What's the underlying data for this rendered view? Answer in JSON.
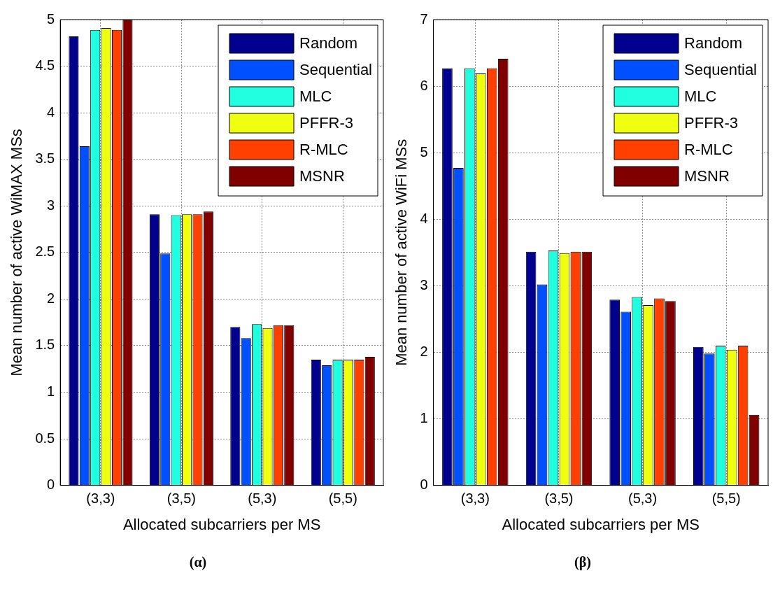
{
  "chart_data": [
    {
      "type": "bar",
      "xlabel": "Allocated subcarriers per MS",
      "ylabel": "Mean number of active WiMAX MSs",
      "annotations": [
        "(α)"
      ],
      "categories": [
        "(3,3)",
        "(3,5)",
        "(5,3)",
        "(5,5)"
      ],
      "series": [
        {
          "name": "Random",
          "color": "#00008f",
          "values": [
            4.82,
            2.91,
            1.7,
            1.35
          ]
        },
        {
          "name": "Sequential",
          "color": "#0050ff",
          "values": [
            3.64,
            2.49,
            1.58,
            1.29
          ]
        },
        {
          "name": "MLC",
          "color": "#20ffe0",
          "values": [
            4.89,
            2.9,
            1.73,
            1.35
          ]
        },
        {
          "name": "PFFR-3",
          "color": "#f0ff10",
          "values": [
            4.91,
            2.91,
            1.69,
            1.35
          ]
        },
        {
          "name": "R-MLC",
          "color": "#ff4000",
          "values": [
            4.89,
            2.91,
            1.72,
            1.35
          ]
        },
        {
          "name": "MSNR",
          "color": "#800000",
          "values": [
            5.0,
            2.94,
            1.72,
            1.38
          ]
        }
      ],
      "ylim": [
        0,
        5
      ],
      "yticks": [
        0,
        0.5,
        1,
        1.5,
        2,
        2.5,
        3,
        3.5,
        4,
        4.5,
        5
      ],
      "grid": true,
      "legend": "top right"
    },
    {
      "type": "bar",
      "xlabel": "Allocated subcarriers per MS",
      "ylabel": "Mean number of active WiFi MSs",
      "annotations": [
        "(β)"
      ],
      "categories": [
        "(3,3)",
        "(3,5)",
        "(5,3)",
        "(5,5)"
      ],
      "series": [
        {
          "name": "Random",
          "color": "#00008f",
          "values": [
            6.27,
            3.51,
            2.79,
            2.08
          ]
        },
        {
          "name": "Sequential",
          "color": "#0050ff",
          "values": [
            4.77,
            3.02,
            2.61,
            1.98
          ]
        },
        {
          "name": "MLC",
          "color": "#20ffe0",
          "values": [
            6.27,
            3.53,
            2.83,
            2.1
          ]
        },
        {
          "name": "PFFR-3",
          "color": "#f0ff10",
          "values": [
            6.19,
            3.49,
            2.71,
            2.04
          ]
        },
        {
          "name": "R-MLC",
          "color": "#ff4000",
          "values": [
            6.27,
            3.51,
            2.81,
            2.1
          ]
        },
        {
          "name": "MSNR",
          "color": "#800000",
          "values": [
            6.41,
            3.51,
            2.77,
            1.06
          ]
        }
      ],
      "ylim": [
        0,
        7
      ],
      "yticks": [
        0,
        1,
        2,
        3,
        4,
        5,
        6,
        7
      ],
      "grid": true,
      "legend": "top right"
    }
  ]
}
